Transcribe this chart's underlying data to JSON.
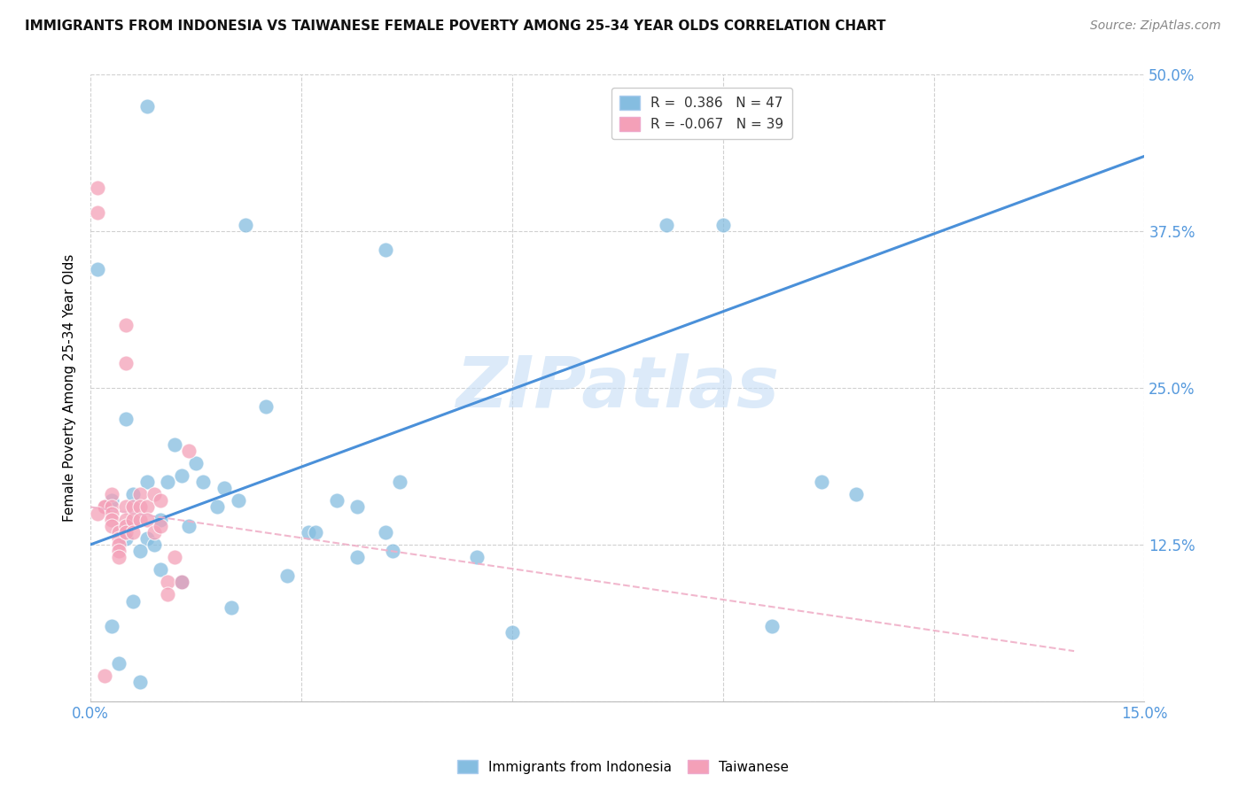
{
  "title": "IMMIGRANTS FROM INDONESIA VS TAIWANESE FEMALE POVERTY AMONG 25-34 YEAR OLDS CORRELATION CHART",
  "source": "Source: ZipAtlas.com",
  "ylabel_label": "Female Poverty Among 25-34 Year Olds",
  "xlim": [
    0.0,
    0.15
  ],
  "ylim": [
    0.0,
    0.5
  ],
  "xticks": [
    0.0,
    0.03,
    0.06,
    0.09,
    0.12,
    0.15
  ],
  "xtick_labels": [
    "0.0%",
    "",
    "",
    "",
    "",
    "15.0%"
  ],
  "ytick_labels": [
    "",
    "12.5%",
    "25.0%",
    "37.5%",
    "50.0%"
  ],
  "yticks": [
    0.0,
    0.125,
    0.25,
    0.375,
    0.5
  ],
  "blue_legend_label": "R =  0.386   N = 47",
  "pink_legend_label": "R = -0.067   N = 39",
  "watermark": "ZIPatlas",
  "blue_color": "#85bde0",
  "pink_color": "#f4a0b8",
  "blue_line_color": "#4a90d9",
  "pink_line_color": "#f0b0c8",
  "grid_color": "#d0d0d0",
  "axis_color": "#5599dd",
  "title_color": "#111111",
  "source_color": "#888888",
  "blue_line_x": [
    0.0,
    0.15
  ],
  "blue_line_y": [
    0.125,
    0.435
  ],
  "pink_line_x": [
    0.0,
    0.14
  ],
  "pink_line_y": [
    0.155,
    0.04
  ],
  "blue_scatter_x": [
    0.008,
    0.022,
    0.005,
    0.012,
    0.008,
    0.006,
    0.003,
    0.01,
    0.014,
    0.005,
    0.008,
    0.011,
    0.013,
    0.016,
    0.019,
    0.009,
    0.007,
    0.031,
    0.038,
    0.043,
    0.025,
    0.035,
    0.038,
    0.044,
    0.042,
    0.02,
    0.028,
    0.06,
    0.082,
    0.09,
    0.004,
    0.007,
    0.013,
    0.006,
    0.003,
    0.021,
    0.018,
    0.032,
    0.015,
    0.055,
    0.01,
    0.013,
    0.042,
    0.097,
    0.109,
    0.104,
    0.001
  ],
  "blue_scatter_y": [
    0.475,
    0.38,
    0.225,
    0.205,
    0.175,
    0.165,
    0.16,
    0.145,
    0.14,
    0.13,
    0.13,
    0.175,
    0.18,
    0.175,
    0.17,
    0.125,
    0.12,
    0.135,
    0.115,
    0.12,
    0.235,
    0.16,
    0.155,
    0.175,
    0.135,
    0.075,
    0.1,
    0.055,
    0.38,
    0.38,
    0.03,
    0.015,
    0.095,
    0.08,
    0.06,
    0.16,
    0.155,
    0.135,
    0.19,
    0.115,
    0.105,
    0.095,
    0.36,
    0.06,
    0.165,
    0.175,
    0.345
  ],
  "pink_scatter_x": [
    0.001,
    0.001,
    0.002,
    0.002,
    0.003,
    0.003,
    0.003,
    0.003,
    0.003,
    0.004,
    0.004,
    0.004,
    0.004,
    0.004,
    0.005,
    0.005,
    0.005,
    0.005,
    0.005,
    0.005,
    0.006,
    0.006,
    0.006,
    0.007,
    0.007,
    0.007,
    0.008,
    0.008,
    0.009,
    0.009,
    0.01,
    0.01,
    0.011,
    0.011,
    0.012,
    0.013,
    0.014,
    0.002,
    0.001
  ],
  "pink_scatter_y": [
    0.41,
    0.39,
    0.155,
    0.155,
    0.165,
    0.155,
    0.15,
    0.145,
    0.14,
    0.135,
    0.13,
    0.125,
    0.12,
    0.115,
    0.3,
    0.27,
    0.155,
    0.145,
    0.14,
    0.135,
    0.155,
    0.145,
    0.135,
    0.165,
    0.155,
    0.145,
    0.155,
    0.145,
    0.165,
    0.135,
    0.16,
    0.14,
    0.095,
    0.085,
    0.115,
    0.095,
    0.2,
    0.02,
    0.15
  ]
}
